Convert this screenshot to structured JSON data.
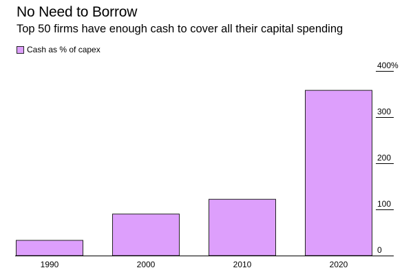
{
  "header": {
    "title": "No Need to Borrow",
    "subtitle": "Top 50 firms have enough cash to cover all their capital spending"
  },
  "chart_data": {
    "type": "bar",
    "title": "No Need to Borrow",
    "subtitle": "Top 50 firms have enough cash to cover all their capital spending",
    "categories": [
      "1990",
      "2000",
      "2010",
      "2020"
    ],
    "series": [
      {
        "name": "Cash as % of capex",
        "values": [
          33,
          90,
          122,
          358
        ]
      }
    ],
    "ylim": [
      0,
      400
    ],
    "yticks": [
      0,
      100,
      200,
      300,
      400
    ],
    "ytick_labels": [
      "0",
      "100",
      "200",
      "300",
      "400%"
    ],
    "y_axis_side": "right",
    "legend_position": "top-left",
    "bar_color": "#dd9ffc",
    "bar_edge_color": "#222222"
  }
}
